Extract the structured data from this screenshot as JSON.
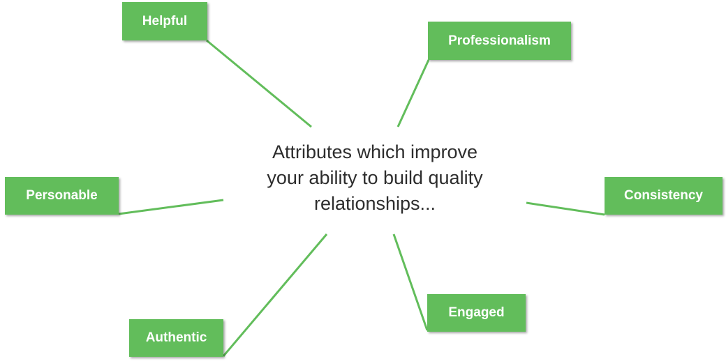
{
  "center": {
    "line1": "Attributes which improve",
    "line2": "your ability to build quality",
    "line3": "relationships..."
  },
  "attributes": {
    "helpful": "Helpful",
    "professionalism": "Professionalism",
    "personable": "Personable",
    "consistency": "Consistency",
    "authentic": "Authentic",
    "engaged": "Engaged"
  },
  "colors": {
    "box": "#62bd5b",
    "connector": "#62bd5b",
    "center_text": "#2d2d2d"
  }
}
